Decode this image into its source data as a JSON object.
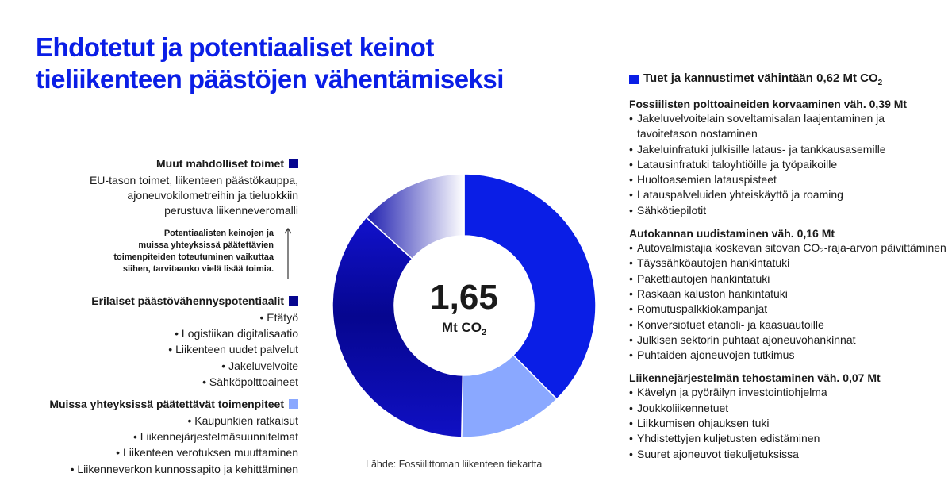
{
  "title": {
    "line1": "Ehdotetut ja potentiaaliset keinot",
    "line2": "tieliikenteen päästöjen vähentämiseksi"
  },
  "colors": {
    "title": "#0a1ee6",
    "supports": "#0a1ee6",
    "potentials": "#06068f",
    "other_contexts": "#8aa8ff",
    "other_measures": "#06068f"
  },
  "chart_data": {
    "type": "pie",
    "center_value": "1,65",
    "center_unit_main": "Mt CO",
    "center_unit_sub": "2",
    "slices": [
      {
        "name": "Tuet ja kannustimet",
        "value": 0.62
      },
      {
        "name": "Muissa yhteyksissä päätettävät toimenpiteet",
        "value": 0.21
      },
      {
        "name": "Erilaiset päästövähennyspotentiaalit",
        "value": 0.6
      },
      {
        "name": "Muut mahdolliset toimet",
        "value": 0.22
      }
    ],
    "total": 1.65
  },
  "right": {
    "legend_main": "Tuet ja kannustimet vähintään 0,62 Mt CO",
    "legend_sub": "2",
    "sections": [
      {
        "title": "Fossiilisten polttoaineiden korvaaminen väh. 0,39 Mt",
        "items": [
          "Jakeluvelvoitelain soveltamisalan laajentaminen ja tavoitetason nostaminen",
          "Jakeluinfratuki julkisille lataus- ja tankkausasemille",
          "Latausinfratuki taloyhtiöille ja työpaikoille",
          "Huoltoasemien latauspisteet",
          "Latauspalveluiden yhteiskäyttö ja roaming",
          "Sähkötiepilotit"
        ]
      },
      {
        "title": "Autokannan uudistaminen väh. 0,16 Mt",
        "items": [
          "Autovalmistajia koskevan sitovan CO₂-raja-arvon päivittäminen",
          "Täyssähköautojen hankintatuki",
          "Pakettiautojen hankintatuki",
          "Raskaan kaluston hankintatuki",
          "Romutuspalkkiokampanjat",
          "Konversiotuet etanoli- ja kaasuautoille",
          "Julkisen sektorin puhtaat ajoneuvohankinnat",
          "Puhtaiden ajoneuvojen tutkimus"
        ]
      },
      {
        "title": "Liikennejärjestelmän tehostaminen väh. 0,07 Mt",
        "items": [
          "Kävelyn ja pyöräilyn investointiohjelma",
          "Joukkoliikennetuet",
          "Liikkumisen ohjauksen tuki",
          "Yhdistettyjen kuljetusten edistäminen",
          "Suuret ajoneuvot tiekuljetuksissa"
        ]
      }
    ]
  },
  "left": {
    "other": {
      "title": "Muut mahdolliset toimet",
      "description": [
        "EU-tason toimet, liikenteen päästökauppa,",
        "ajoneuvokilometreihin ja tieluokkiin",
        "perustuva liikenneveromalli"
      ]
    },
    "note": [
      "Potentiaalisten keinojen ja",
      "muissa yhteyksissä päätettävien",
      "toimenpiteiden toteutuminen vaikuttaa",
      "siihen, tarvitaanko vielä lisää toimia."
    ],
    "potentials": {
      "title": "Erilaiset päästövähennyspotentiaalit",
      "items": [
        "Etätyö",
        "Logistiikan digitalisaatio",
        "Liikenteen uudet palvelut",
        "Jakeluvelvoite",
        "Sähköpolttoaineet"
      ]
    },
    "contexts": {
      "title": "Muissa yhteyksissä päätettävät toimenpiteet",
      "items": [
        "Kaupunkien ratkaisut",
        "Liikennejärjestelmäsuunnitelmat",
        "Liikenteen verotuksen muuttaminen",
        "Liikenneverkon kunnossapito ja kehittäminen"
      ]
    }
  },
  "source": "Lähde: Fossiilittoman liikenteen tiekartta"
}
